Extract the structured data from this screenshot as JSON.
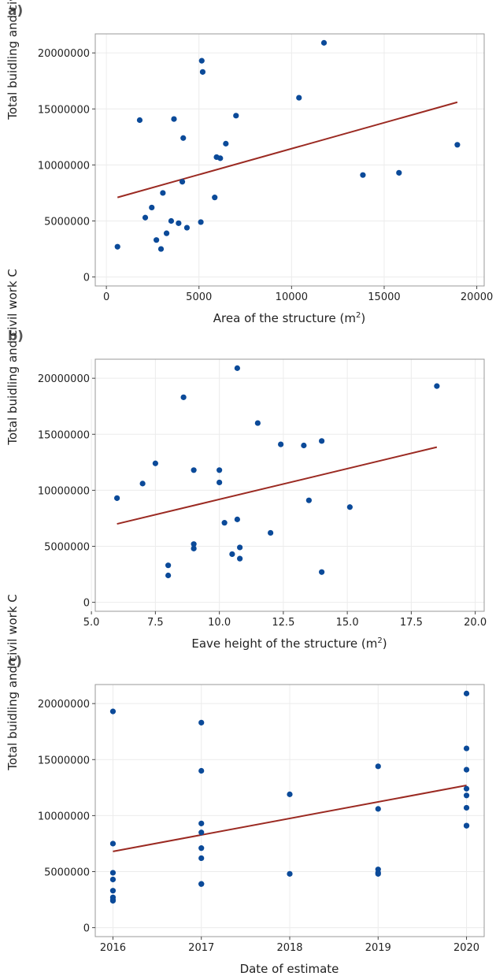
{
  "chart_data": [
    {
      "panel_label": "a)",
      "type": "scatter",
      "xlabel": "Area of the structure (m",
      "xlabel_sup": "2",
      "xlabel_suffix": ")",
      "ylabel": "Total buidling and civil work C",
      "xlim": [
        -600,
        20400
      ],
      "ylim": [
        -800000,
        21700000
      ],
      "xticks": [
        0,
        5000,
        10000,
        15000,
        20000
      ],
      "xtick_labels": [
        "0",
        "5000",
        "10000",
        "15000",
        "20000"
      ],
      "yticks": [
        0,
        5000000,
        10000000,
        15000000,
        20000000
      ],
      "ytick_labels": [
        "0",
        "5000000",
        "10000000",
        "15000000",
        "20000000"
      ],
      "grid": true,
      "x": [
        600,
        1800,
        2100,
        2450,
        2700,
        2950,
        3050,
        3250,
        3500,
        3650,
        3900,
        4100,
        4150,
        4350,
        5100,
        5150,
        5200,
        5850,
        5950,
        6150,
        6450,
        7000,
        10400,
        11750,
        13850,
        15800,
        18950
      ],
      "y": [
        2700000,
        14000000,
        5300000,
        6200000,
        3300000,
        2500000,
        7500000,
        3900000,
        5000000,
        14100000,
        4800000,
        8500000,
        12400000,
        4400000,
        4900000,
        19300000,
        18300000,
        7100000,
        10700000,
        10600000,
        11900000,
        14400000,
        16000000,
        20900000,
        9100000,
        9300000,
        11800000
      ],
      "trend": {
        "x": [
          600,
          18950
        ],
        "y": [
          7100000,
          15600000
        ]
      }
    },
    {
      "panel_label": "b)",
      "type": "scatter",
      "xlabel": "Eave height of the structure (m",
      "xlabel_sup": "2",
      "xlabel_suffix": ")",
      "ylabel": "Total buidling and civil work C",
      "xlim": [
        5.15,
        20.35
      ],
      "ylim": [
        -800000,
        21700000
      ],
      "xticks": [
        5,
        7.5,
        10,
        12.5,
        15,
        17.5,
        20
      ],
      "xtick_labels": [
        "5.0",
        "7.5",
        "10.0",
        "12.5",
        "15.0",
        "17.5",
        "20.0"
      ],
      "yticks": [
        0,
        5000000,
        10000000,
        15000000,
        20000000
      ],
      "ytick_labels": [
        "0",
        "5000000",
        "10000000",
        "15000000",
        "20000000"
      ],
      "grid": true,
      "x": [
        6.0,
        7.0,
        7.5,
        8.0,
        8.0,
        8.6,
        9.0,
        9.0,
        9.0,
        10.0,
        10.0,
        10.2,
        10.5,
        10.7,
        10.7,
        10.8,
        10.8,
        11.5,
        12.0,
        12.4,
        13.3,
        13.5,
        14.0,
        14.0,
        15.1,
        18.5
      ],
      "y": [
        9300000,
        10600000,
        12400000,
        3300000,
        2400000,
        18300000,
        11800000,
        5200000,
        4800000,
        11800000,
        10700000,
        7100000,
        4300000,
        7400000,
        20900000,
        4900000,
        3900000,
        16000000,
        6200000,
        14100000,
        14000000,
        9100000,
        14400000,
        2700000,
        8500000,
        19300000
      ],
      "trend": {
        "x": [
          6.0,
          18.5
        ],
        "y": [
          7000000,
          13850000
        ]
      }
    },
    {
      "panel_label": "c)",
      "type": "scatter",
      "xlabel": "Date of estimate",
      "xlabel_sup": "",
      "xlabel_suffix": "",
      "ylabel": "Total buidling and civil work C",
      "xlim": [
        2015.8,
        2020.2
      ],
      "ylim": [
        -800000,
        21700000
      ],
      "xticks": [
        2016,
        2017,
        2018,
        2019,
        2020
      ],
      "xtick_labels": [
        "2016",
        "2017",
        "2018",
        "2019",
        "2020"
      ],
      "yticks": [
        0,
        5000000,
        10000000,
        15000000,
        20000000
      ],
      "ytick_labels": [
        "0",
        "5000000",
        "10000000",
        "15000000",
        "20000000"
      ],
      "grid": true,
      "x": [
        2016,
        2016,
        2016,
        2016,
        2016,
        2016,
        2016,
        2016,
        2017,
        2017,
        2017,
        2017,
        2017,
        2017,
        2017,
        2017,
        2018,
        2018,
        2019,
        2019,
        2019,
        2019,
        2019,
        2020,
        2020,
        2020,
        2020,
        2020,
        2020,
        2020,
        2020
      ],
      "y": [
        19300000,
        7500000,
        4900000,
        4300000,
        3300000,
        2700000,
        2500000,
        2400000,
        18300000,
        14000000,
        9300000,
        8500000,
        7100000,
        6200000,
        3900000,
        3900000,
        11900000,
        4800000,
        14400000,
        10600000,
        5200000,
        4900000,
        4800000,
        20900000,
        16000000,
        14100000,
        12400000,
        11800000,
        10700000,
        9100000,
        9100000
      ],
      "trend": {
        "x": [
          2016,
          2020
        ],
        "y": [
          6800000,
          12700000
        ]
      }
    }
  ],
  "colors": {
    "point": "#0b4a99",
    "trend": "#9b2a22",
    "frame": "#999999",
    "grid": "#ececec"
  }
}
